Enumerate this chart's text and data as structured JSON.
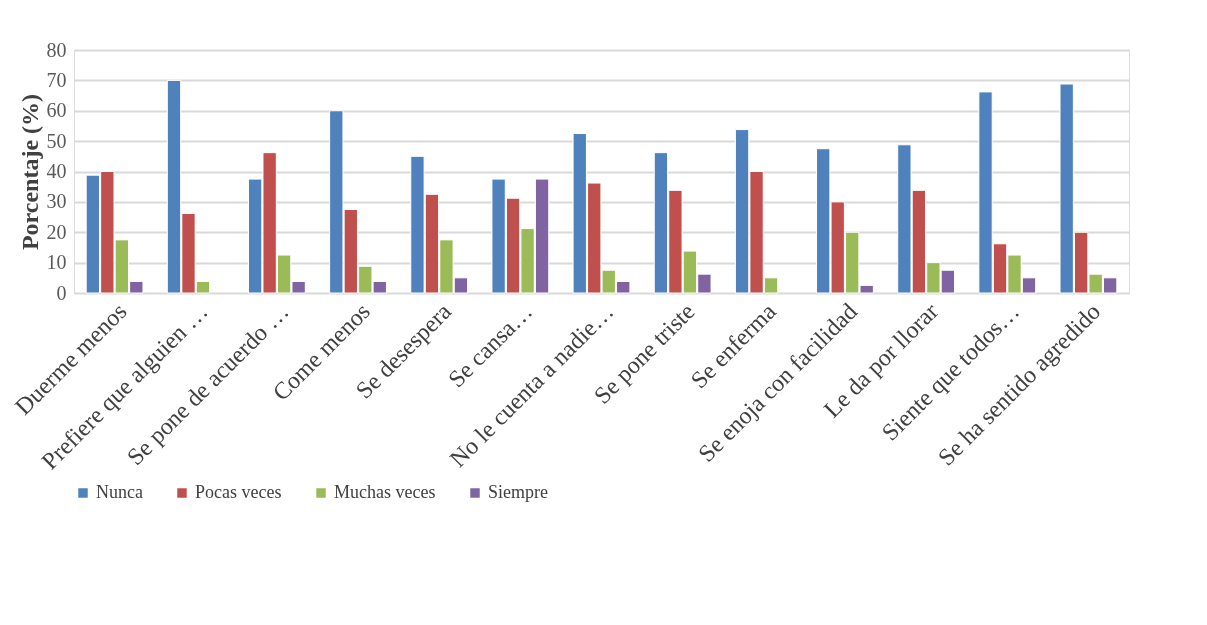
{
  "chart_data": {
    "type": "bar",
    "ylabel": "Porcentaje (%)",
    "categories": [
      "Duerme menos",
      "Prefiere que alguien …",
      "Se pone de acuerdo …",
      "Come menos",
      "Se desespera",
      "Se cansa…",
      "No le cuenta a nadie…",
      "Se pone triste",
      "Se enferma",
      "Se enoja con facilidad",
      "Le da por llorar",
      "Siente que todos…",
      "Se ha sentido agredido"
    ],
    "series": [
      {
        "name": "Nunca",
        "color": "#4f81bd",
        "values": [
          38.8,
          70,
          37.5,
          60,
          45,
          37.5,
          52.5,
          46.2,
          53.8,
          47.5,
          48.8,
          66.2,
          68.8
        ]
      },
      {
        "name": "Pocas veces",
        "color": "#c0504d",
        "values": [
          40,
          26.2,
          46.2,
          27.5,
          32.5,
          31.2,
          36.2,
          33.8,
          40,
          30,
          33.8,
          16.2,
          20
        ]
      },
      {
        "name": "Muchas veces",
        "color": "#9bbb59",
        "values": [
          17.5,
          3.8,
          12.5,
          8.8,
          17.5,
          21.2,
          7.5,
          13.8,
          5,
          20,
          10,
          12.5,
          6.2
        ]
      },
      {
        "name": "Siempre",
        "color": "#8064a2",
        "values": [
          3.8,
          null,
          3.8,
          3.8,
          5,
          37.5,
          3.8,
          6.2,
          null,
          2.5,
          7.5,
          5,
          5
        ]
      }
    ],
    "ylim": [
      0,
      80
    ],
    "yticks": [
      0,
      10,
      20,
      30,
      40,
      50,
      60,
      70,
      80
    ],
    "grid": "y",
    "legend": "bottom"
  }
}
